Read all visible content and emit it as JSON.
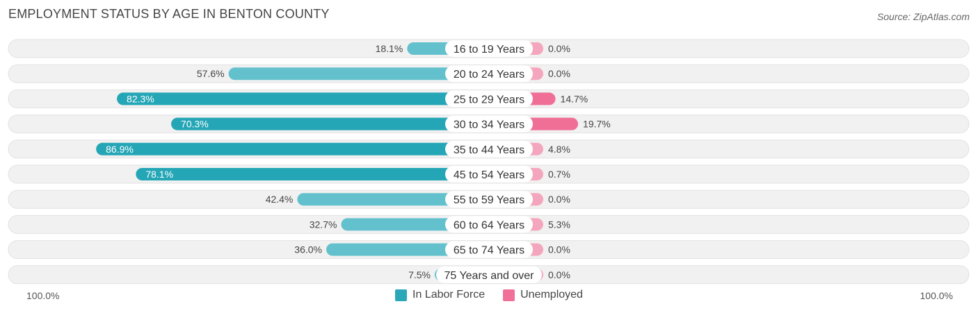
{
  "header": {
    "title": "EMPLOYMENT STATUS BY AGE IN BENTON COUNTY",
    "source": "Source: ZipAtlas.com"
  },
  "axis": {
    "left_label": "100.0%",
    "right_label": "100.0%"
  },
  "legend": [
    {
      "label": "In Labor Force",
      "color": "#2aa8b8"
    },
    {
      "label": "Unemployed",
      "color": "#f07099"
    }
  ],
  "colors": {
    "labor_strong": "#25a6b6",
    "labor_light": "#63c1cd",
    "unemp_strong": "#f06f96",
    "unemp_light": "#f5a6bf",
    "track": "#f1f1f1"
  },
  "chart_data": {
    "type": "bar",
    "orientation": "diverging-horizontal",
    "title": "EMPLOYMENT STATUS BY AGE IN BENTON COUNTY",
    "categories": [
      "16 to 19 Years",
      "20 to 24 Years",
      "25 to 29 Years",
      "30 to 34 Years",
      "35 to 44 Years",
      "45 to 54 Years",
      "55 to 59 Years",
      "60 to 64 Years",
      "65 to 74 Years",
      "75 Years and over"
    ],
    "series": [
      {
        "name": "In Labor Force",
        "values": [
          18.1,
          57.6,
          82.3,
          70.3,
          86.9,
          78.1,
          42.4,
          32.7,
          36.0,
          7.5
        ],
        "labels": [
          "18.1%",
          "57.6%",
          "82.3%",
          "70.3%",
          "86.9%",
          "78.1%",
          "42.4%",
          "32.7%",
          "36.0%",
          "7.5%"
        ]
      },
      {
        "name": "Unemployed",
        "values": [
          0.0,
          0.0,
          14.7,
          19.7,
          4.8,
          0.7,
          0.0,
          5.3,
          0.0,
          0.0
        ],
        "labels": [
          "0.0%",
          "0.0%",
          "14.7%",
          "19.7%",
          "4.8%",
          "0.7%",
          "0.0%",
          "5.3%",
          "0.0%",
          "0.0%"
        ]
      }
    ],
    "xlim": [
      -100,
      100
    ],
    "legend_position": "bottom-center"
  }
}
